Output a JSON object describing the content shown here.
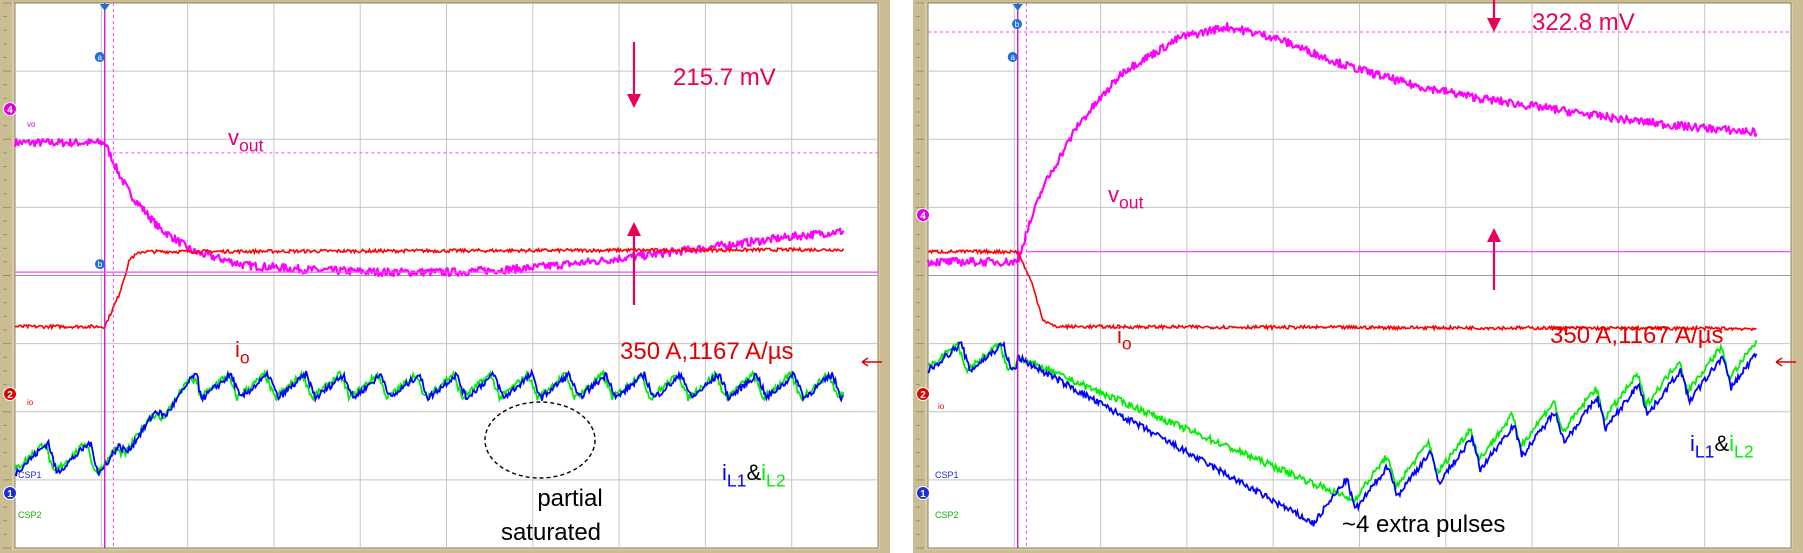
{
  "chart_data": [
    {
      "type": "line",
      "title": "",
      "annotations": {
        "vout_delta": "215.7 mV",
        "io_step": "350 A,1167 A/µs",
        "saturation_note_line1": "partial",
        "saturation_note_line2": "saturated"
      },
      "trace_labels": {
        "vout": {
          "main": "v",
          "sub": "out"
        },
        "io": {
          "main": "i",
          "sub": "o"
        },
        "il": {
          "i1": "i",
          "s1": "L1",
          "amp": "&",
          "i2": "i",
          "s2": "L2"
        }
      },
      "channel_markers": {
        "ch4": "4",
        "ch2": "2",
        "ch1": "1",
        "ch4_name": "vo",
        "ch2_name": "io",
        "csp1": "CSP1",
        "csp2": "CSP2",
        "cursor_a": "a",
        "cursor_b": "b"
      },
      "grid": true,
      "grid_divisions": {
        "x": 10,
        "y": 8
      },
      "colors": {
        "vout": "#ff00ff",
        "io": "#ff0000",
        "il1": "#0000ff",
        "il2": "#00ee00",
        "frame": "#c9b98c",
        "label": "#e6007e",
        "annotation": "#e8005a"
      },
      "series": [
        {
          "name": "vout",
          "x": [
            0,
            0.78,
            0.82,
            0.9,
            1.0,
            1.25,
            1.55,
            2.0,
            2.6,
            3.2,
            3.8,
            4.4,
            5.0,
            5.6,
            6.2,
            6.8,
            7.2
          ],
          "y": [
            5.95,
            5.95,
            5.8,
            5.5,
            5.2,
            4.7,
            4.35,
            4.15,
            4.08,
            4.05,
            4.05,
            4.1,
            4.2,
            4.32,
            4.45,
            4.58,
            4.65
          ]
        },
        {
          "name": "io",
          "x": [
            0,
            0.78,
            0.9,
            1.0,
            1.1,
            7.2
          ],
          "y": [
            3.25,
            3.25,
            3.7,
            4.25,
            4.35,
            4.38
          ]
        },
        {
          "name": "il",
          "shape": "sawtooth_then_rise",
          "pre_lo": 1.1,
          "pre_hi": 1.55,
          "post_lo": 2.2,
          "post_hi": 2.55,
          "periods": 7
        }
      ]
    },
    {
      "type": "line",
      "title": "",
      "annotations": {
        "vout_delta": "322.8 mV",
        "io_step": "350 A,1167 A/µs",
        "extra_pulses": "~4 extra pulses"
      },
      "trace_labels": {
        "vout": {
          "main": "v",
          "sub": "out"
        },
        "io": {
          "main": "i",
          "sub": "o"
        },
        "il": {
          "i1": "i",
          "s1": "L1",
          "amp": "&",
          "i2": "i",
          "s2": "L2"
        }
      },
      "channel_markers": {
        "ch4": "4",
        "ch2": "2",
        "ch1": "1",
        "ch4_name": "vo",
        "ch2_name": "io",
        "csp1": "CSP1",
        "csp2": "CSP2",
        "cursor_a": "a",
        "cursor_b": "b"
      },
      "grid": true,
      "grid_divisions": {
        "x": 10,
        "y": 8
      },
      "colors": {
        "vout": "#ff00ff",
        "io": "#ff0000",
        "il1": "#0000ff",
        "il2": "#00ee00",
        "frame": "#c9b98c",
        "label": "#e6007e",
        "annotation": "#e8005a"
      },
      "series": [
        {
          "name": "vout",
          "x": [
            0,
            0.78,
            0.85,
            1.0,
            1.3,
            1.7,
            2.2,
            2.6,
            3.0,
            3.6,
            4.2,
            4.8,
            5.4,
            6.0,
            6.5,
            7.2
          ],
          "y": [
            4.2,
            4.2,
            4.6,
            5.3,
            6.2,
            7.0,
            7.5,
            7.65,
            7.5,
            7.1,
            6.8,
            6.6,
            6.45,
            6.3,
            6.2,
            6.1
          ]
        },
        {
          "name": "io",
          "x": [
            0,
            0.78,
            0.9,
            1.0,
            1.1,
            7.2
          ],
          "y": [
            4.35,
            4.35,
            3.9,
            3.35,
            3.25,
            3.22
          ]
        },
        {
          "name": "il",
          "shape": "sawtooth_then_fall",
          "pre_lo": 2.6,
          "pre_hi": 3.0,
          "post_min": 0.4,
          "periods": 7
        }
      ]
    }
  ]
}
